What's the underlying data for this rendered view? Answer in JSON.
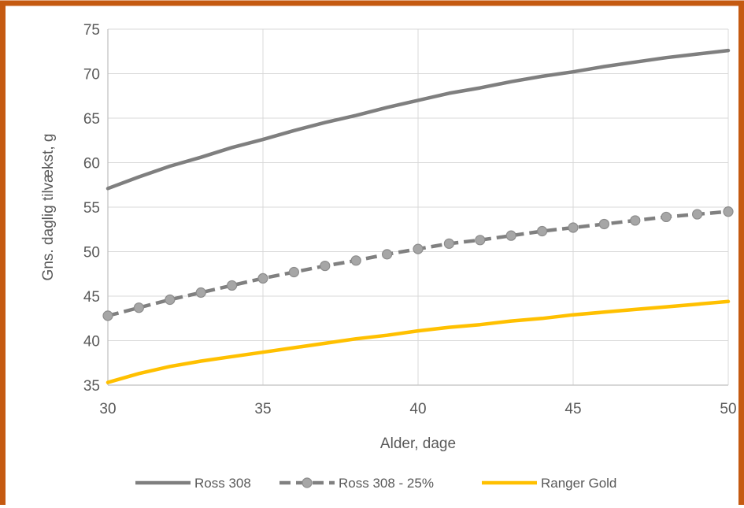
{
  "colors": {
    "frame": "#C55A11",
    "grid": "#D9D9D9",
    "axis": "#BFBFBF",
    "text": "#595959",
    "ross": "#7F7F7F",
    "ross25_line": "#808080",
    "ross25_marker_fill": "#A6A6A6",
    "ranger": "#FFC000"
  },
  "chart_data": {
    "type": "line",
    "title": "",
    "xlabel": "Alder, dage",
    "ylabel": "Gns. daglig tilvækst, g",
    "xlim": [
      30,
      50
    ],
    "ylim": [
      35,
      75
    ],
    "x_ticks": [
      30,
      35,
      40,
      45,
      50
    ],
    "y_ticks": [
      35,
      40,
      45,
      50,
      55,
      60,
      65,
      70,
      75
    ],
    "grid": true,
    "legend": "bottom",
    "x": [
      30,
      31,
      32,
      33,
      34,
      35,
      36,
      37,
      38,
      39,
      40,
      41,
      42,
      43,
      44,
      45,
      46,
      47,
      48,
      49,
      50
    ],
    "series": [
      {
        "name": "Ross 308",
        "style": "solid",
        "color": "#7F7F7F",
        "markers": false,
        "values": [
          57.1,
          58.4,
          59.6,
          60.6,
          61.7,
          62.6,
          63.6,
          64.5,
          65.3,
          66.2,
          67.0,
          67.8,
          68.4,
          69.1,
          69.7,
          70.2,
          70.8,
          71.3,
          71.8,
          72.2,
          72.6
        ]
      },
      {
        "name": "Ross 308 - 25%",
        "style": "dashed",
        "color": "#808080",
        "markers": true,
        "values": [
          42.8,
          43.7,
          44.6,
          45.4,
          46.2,
          47.0,
          47.7,
          48.4,
          49.0,
          49.7,
          50.3,
          50.9,
          51.3,
          51.8,
          52.3,
          52.7,
          53.1,
          53.5,
          53.9,
          54.2,
          54.5
        ]
      },
      {
        "name": "Ranger Gold",
        "style": "solid",
        "color": "#FFC000",
        "markers": false,
        "values": [
          35.3,
          36.3,
          37.1,
          37.7,
          38.2,
          38.7,
          39.2,
          39.7,
          40.2,
          40.6,
          41.1,
          41.5,
          41.8,
          42.2,
          42.5,
          42.9,
          43.2,
          43.5,
          43.8,
          44.1,
          44.4
        ]
      }
    ]
  }
}
